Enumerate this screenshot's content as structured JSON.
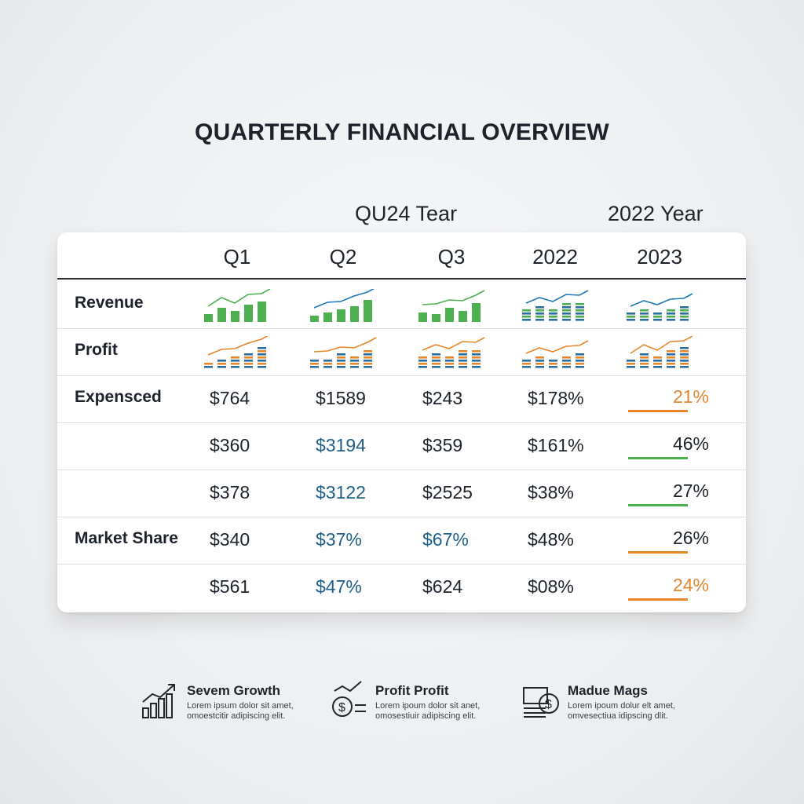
{
  "title": "QUARTERLY FINANCIAL OVERVIEW",
  "table": {
    "groups": [
      "QU24 Tear",
      "2022 Year"
    ],
    "columns": [
      "Q1",
      "Q2",
      "Q3",
      "2022",
      "2023"
    ],
    "chart_rows": [
      "Revenue",
      "Profit"
    ],
    "rows": [
      {
        "label": "Expensced",
        "cells": [
          "$764",
          "$1589",
          "$243",
          "$178%",
          "21%"
        ]
      },
      {
        "label": null,
        "cells": [
          "$360",
          "$3194",
          "$359",
          "$161%",
          "46%"
        ]
      },
      {
        "label": null,
        "cells": [
          "$378",
          "$3122",
          "$2525",
          "$38%",
          "27%"
        ]
      },
      {
        "label": "Market Share",
        "cells": [
          "$340",
          "$37%",
          "$67%",
          "$48%",
          "26%"
        ]
      },
      {
        "label": null,
        "cells": [
          "$561",
          "$47%",
          "$624",
          "$08%",
          "24%"
        ]
      }
    ]
  },
  "footer": [
    {
      "title": "Sevem Growth",
      "text": [
        "Lorem ipsum dolor sit amet,",
        "omoestcitir adipiscing elit."
      ]
    },
    {
      "title": "Profit Profit",
      "text": [
        "Lorem ipoum dolor sit anet,",
        "omosestiuir adipiscing elit."
      ]
    },
    {
      "title": "Madue Mags",
      "text": [
        "Lorem ipoum dolur elt amet,",
        "omvesectiua idipscing dlit."
      ]
    }
  ]
}
